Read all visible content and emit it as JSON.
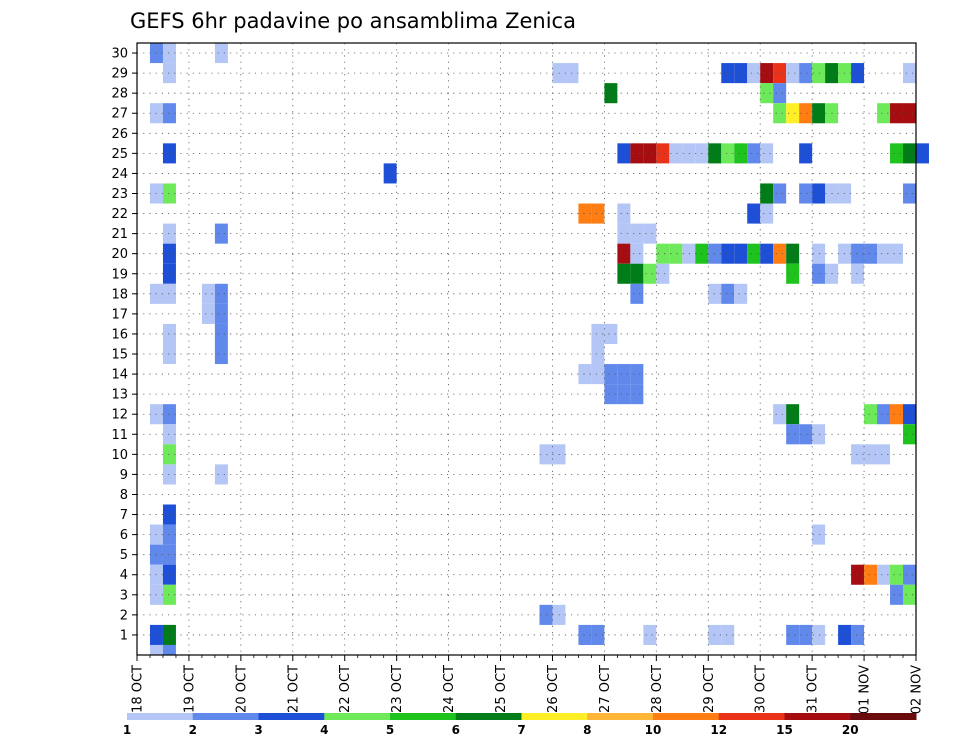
{
  "chart_data": {
    "type": "heatmap",
    "title": "GEFS 6hr padavine po ansamblima Zenica",
    "xlabel": "",
    "ylabel": "",
    "x_tick_labels": [
      "18 OCT",
      "19 OCT",
      "20 OCT",
      "21 OCT",
      "22 OCT",
      "23 OCT",
      "24 OCT",
      "25 OCT",
      "26 OCT",
      "27 OCT",
      "28 OCT",
      "29 OCT",
      "30 OCT",
      "31 OCT",
      "01 NOV",
      "02 NOV"
    ],
    "y_tick_labels": [
      "1",
      "2",
      "3",
      "4",
      "5",
      "6",
      "7",
      "8",
      "9",
      "10",
      "11",
      "12",
      "13",
      "14",
      "15",
      "16",
      "17",
      "18",
      "19",
      "20",
      "21",
      "22",
      "23",
      "24",
      "25",
      "26",
      "27",
      "28",
      "29",
      "30"
    ],
    "x_step_hours": 6,
    "y_range": [
      1,
      30
    ],
    "grid": "dotted",
    "colorbar": {
      "labels": [
        "1",
        "2",
        "3",
        "4",
        "5",
        "6",
        "7",
        "8",
        "10",
        "12",
        "15",
        "20"
      ],
      "colors": [
        "#b3c6f5",
        "#6189ec",
        "#1e4fd7",
        "#6ee95a",
        "#1fc31e",
        "#007d18",
        "#ffef27",
        "#ffb637",
        "#ff7d13",
        "#e93218",
        "#a50d10",
        "#6a0b0e"
      ]
    },
    "cells": [
      {
        "t": 1,
        "m": 30,
        "v": 2
      },
      {
        "t": 2,
        "m": 30,
        "v": 1
      },
      {
        "t": 6,
        "m": 30,
        "v": 1
      },
      {
        "t": 2,
        "m": 29,
        "v": 1
      },
      {
        "t": 1,
        "m": 27,
        "v": 1
      },
      {
        "t": 2,
        "m": 27,
        "v": 2
      },
      {
        "t": 2,
        "m": 25,
        "v": 3
      },
      {
        "t": 1,
        "m": 23,
        "v": 1
      },
      {
        "t": 2,
        "m": 23,
        "v": 4
      },
      {
        "t": 2,
        "m": 21,
        "v": 1
      },
      {
        "t": 6,
        "m": 21,
        "v": 2
      },
      {
        "t": 2,
        "m": 20,
        "v": 3
      },
      {
        "t": 2,
        "m": 19,
        "v": 3
      },
      {
        "t": 1,
        "m": 18,
        "v": 1
      },
      {
        "t": 2,
        "m": 18,
        "v": 1
      },
      {
        "t": 5,
        "m": 18,
        "v": 1
      },
      {
        "t": 6,
        "m": 18,
        "v": 2
      },
      {
        "t": 5,
        "m": 17,
        "v": 1
      },
      {
        "t": 6,
        "m": 17,
        "v": 2
      },
      {
        "t": 2,
        "m": 16,
        "v": 1
      },
      {
        "t": 6,
        "m": 16,
        "v": 2
      },
      {
        "t": 2,
        "m": 15,
        "v": 1
      },
      {
        "t": 6,
        "m": 15,
        "v": 2
      },
      {
        "t": 1,
        "m": 12,
        "v": 1
      },
      {
        "t": 2,
        "m": 12,
        "v": 2
      },
      {
        "t": 2,
        "m": 11,
        "v": 1
      },
      {
        "t": 2,
        "m": 10,
        "v": 4
      },
      {
        "t": 2,
        "m": 9,
        "v": 1
      },
      {
        "t": 6,
        "m": 9,
        "v": 1
      },
      {
        "t": 2,
        "m": 7,
        "v": 3
      },
      {
        "t": 1,
        "m": 6,
        "v": 1
      },
      {
        "t": 2,
        "m": 6,
        "v": 2
      },
      {
        "t": 1,
        "m": 5,
        "v": 2
      },
      {
        "t": 2,
        "m": 5,
        "v": 2
      },
      {
        "t": 1,
        "m": 4,
        "v": 1
      },
      {
        "t": 2,
        "m": 4,
        "v": 3
      },
      {
        "t": 1,
        "m": 3,
        "v": 1
      },
      {
        "t": 2,
        "m": 3,
        "v": 4
      },
      {
        "t": 1,
        "m": 1,
        "v": 3
      },
      {
        "t": 2,
        "m": 1,
        "v": 6
      },
      {
        "t": 1,
        "m": 0,
        "v": 1
      },
      {
        "t": 2,
        "m": 0,
        "v": 2
      },
      {
        "t": 19,
        "m": 24,
        "v": 3
      },
      {
        "t": 32,
        "m": 29,
        "v": 1
      },
      {
        "t": 33,
        "m": 29,
        "v": 1
      },
      {
        "t": 31,
        "m": 10,
        "v": 1
      },
      {
        "t": 32,
        "m": 10,
        "v": 1
      },
      {
        "t": 31,
        "m": 2,
        "v": 2
      },
      {
        "t": 32,
        "m": 2,
        "v": 1
      },
      {
        "t": 34,
        "m": 1,
        "v": 2
      },
      {
        "t": 35,
        "m": 1,
        "v": 2
      },
      {
        "t": 34,
        "m": 22,
        "v": 10
      },
      {
        "t": 35,
        "m": 22,
        "v": 10
      },
      {
        "t": 35,
        "m": 16,
        "v": 1
      },
      {
        "t": 35,
        "m": 15,
        "v": 1
      },
      {
        "t": 34,
        "m": 14,
        "v": 1
      },
      {
        "t": 35,
        "m": 14,
        "v": 1
      },
      {
        "t": 36,
        "m": 16,
        "v": 1
      },
      {
        "t": 36,
        "m": 28,
        "v": 6
      },
      {
        "t": 36,
        "m": 13,
        "v": 2
      },
      {
        "t": 37,
        "m": 13,
        "v": 2
      },
      {
        "t": 38,
        "m": 13,
        "v": 2
      },
      {
        "t": 36,
        "m": 14,
        "v": 2
      },
      {
        "t": 37,
        "m": 14,
        "v": 2
      },
      {
        "t": 38,
        "m": 14,
        "v": 2
      },
      {
        "t": 37,
        "m": 25,
        "v": 3
      },
      {
        "t": 38,
        "m": 25,
        "v": 15
      },
      {
        "t": 39,
        "m": 25,
        "v": 15
      },
      {
        "t": 40,
        "m": 25,
        "v": 12
      },
      {
        "t": 41,
        "m": 25,
        "v": 1
      },
      {
        "t": 42,
        "m": 25,
        "v": 1
      },
      {
        "t": 43,
        "m": 25,
        "v": 1
      },
      {
        "t": 44,
        "m": 25,
        "v": 6
      },
      {
        "t": 45,
        "m": 25,
        "v": 4
      },
      {
        "t": 46,
        "m": 25,
        "v": 5
      },
      {
        "t": 47,
        "m": 25,
        "v": 2
      },
      {
        "t": 48,
        "m": 25,
        "v": 1
      },
      {
        "t": 51,
        "m": 25,
        "v": 3
      },
      {
        "t": 58,
        "m": 25,
        "v": 5
      },
      {
        "t": 59,
        "m": 25,
        "v": 6
      },
      {
        "t": 60,
        "m": 25,
        "v": 3
      },
      {
        "t": 37,
        "m": 22,
        "v": 1
      },
      {
        "t": 37,
        "m": 21,
        "v": 1
      },
      {
        "t": 38,
        "m": 21,
        "v": 1
      },
      {
        "t": 39,
        "m": 21,
        "v": 1
      },
      {
        "t": 37,
        "m": 20,
        "v": 15
      },
      {
        "t": 38,
        "m": 20,
        "v": 1
      },
      {
        "t": 40,
        "m": 20,
        "v": 4
      },
      {
        "t": 41,
        "m": 20,
        "v": 4
      },
      {
        "t": 42,
        "m": 20,
        "v": 1
      },
      {
        "t": 43,
        "m": 20,
        "v": 5
      },
      {
        "t": 44,
        "m": 20,
        "v": 2
      },
      {
        "t": 45,
        "m": 20,
        "v": 3
      },
      {
        "t": 46,
        "m": 20,
        "v": 3
      },
      {
        "t": 47,
        "m": 20,
        "v": 5
      },
      {
        "t": 48,
        "m": 20,
        "v": 3
      },
      {
        "t": 49,
        "m": 20,
        "v": 10
      },
      {
        "t": 50,
        "m": 20,
        "v": 6
      },
      {
        "t": 52,
        "m": 20,
        "v": 1
      },
      {
        "t": 54,
        "m": 20,
        "v": 1
      },
      {
        "t": 55,
        "m": 20,
        "v": 2
      },
      {
        "t": 56,
        "m": 20,
        "v": 2
      },
      {
        "t": 57,
        "m": 20,
        "v": 1
      },
      {
        "t": 58,
        "m": 20,
        "v": 1
      },
      {
        "t": 37,
        "m": 19,
        "v": 6
      },
      {
        "t": 38,
        "m": 19,
        "v": 6
      },
      {
        "t": 39,
        "m": 19,
        "v": 4
      },
      {
        "t": 40,
        "m": 19,
        "v": 1
      },
      {
        "t": 50,
        "m": 19,
        "v": 5
      },
      {
        "t": 52,
        "m": 19,
        "v": 2
      },
      {
        "t": 53,
        "m": 19,
        "v": 1
      },
      {
        "t": 55,
        "m": 19,
        "v": 1
      },
      {
        "t": 38,
        "m": 18,
        "v": 2
      },
      {
        "t": 44,
        "m": 18,
        "v": 1
      },
      {
        "t": 45,
        "m": 18,
        "v": 2
      },
      {
        "t": 46,
        "m": 18,
        "v": 1
      },
      {
        "t": 44,
        "m": 1,
        "v": 1
      },
      {
        "t": 45,
        "m": 1,
        "v": 1
      },
      {
        "t": 50,
        "m": 1,
        "v": 2
      },
      {
        "t": 51,
        "m": 1,
        "v": 2
      },
      {
        "t": 52,
        "m": 1,
        "v": 1
      },
      {
        "t": 54,
        "m": 1,
        "v": 3
      },
      {
        "t": 55,
        "m": 1,
        "v": 2
      },
      {
        "t": 39,
        "m": 1,
        "v": 1
      },
      {
        "t": 45,
        "m": 29,
        "v": 3
      },
      {
        "t": 46,
        "m": 29,
        "v": 3
      },
      {
        "t": 47,
        "m": 29,
        "v": 1
      },
      {
        "t": 48,
        "m": 29,
        "v": 15
      },
      {
        "t": 49,
        "m": 29,
        "v": 12
      },
      {
        "t": 50,
        "m": 29,
        "v": 1
      },
      {
        "t": 51,
        "m": 29,
        "v": 2
      },
      {
        "t": 52,
        "m": 29,
        "v": 4
      },
      {
        "t": 53,
        "m": 29,
        "v": 6
      },
      {
        "t": 54,
        "m": 29,
        "v": 4
      },
      {
        "t": 55,
        "m": 29,
        "v": 3
      },
      {
        "t": 59,
        "m": 29,
        "v": 1
      },
      {
        "t": 48,
        "m": 28,
        "v": 4
      },
      {
        "t": 49,
        "m": 28,
        "v": 2
      },
      {
        "t": 49,
        "m": 27,
        "v": 4
      },
      {
        "t": 50,
        "m": 27,
        "v": 7
      },
      {
        "t": 51,
        "m": 27,
        "v": 10
      },
      {
        "t": 52,
        "m": 27,
        "v": 6
      },
      {
        "t": 53,
        "m": 27,
        "v": 4
      },
      {
        "t": 57,
        "m": 27,
        "v": 4
      },
      {
        "t": 58,
        "m": 27,
        "v": 15
      },
      {
        "t": 59,
        "m": 27,
        "v": 15
      },
      {
        "t": 47,
        "m": 22,
        "v": 3
      },
      {
        "t": 48,
        "m": 22,
        "v": 1
      },
      {
        "t": 48,
        "m": 23,
        "v": 6
      },
      {
        "t": 49,
        "m": 23,
        "v": 2
      },
      {
        "t": 51,
        "m": 23,
        "v": 2
      },
      {
        "t": 52,
        "m": 23,
        "v": 3
      },
      {
        "t": 53,
        "m": 23,
        "v": 1
      },
      {
        "t": 54,
        "m": 23,
        "v": 1
      },
      {
        "t": 59,
        "m": 23,
        "v": 2
      },
      {
        "t": 49,
        "m": 12,
        "v": 1
      },
      {
        "t": 50,
        "m": 12,
        "v": 6
      },
      {
        "t": 56,
        "m": 12,
        "v": 4
      },
      {
        "t": 57,
        "m": 12,
        "v": 2
      },
      {
        "t": 58,
        "m": 12,
        "v": 10
      },
      {
        "t": 59,
        "m": 12,
        "v": 3
      },
      {
        "t": 50,
        "m": 11,
        "v": 2
      },
      {
        "t": 51,
        "m": 11,
        "v": 2
      },
      {
        "t": 52,
        "m": 11,
        "v": 1
      },
      {
        "t": 59,
        "m": 11,
        "v": 5
      },
      {
        "t": 55,
        "m": 10,
        "v": 1
      },
      {
        "t": 56,
        "m": 10,
        "v": 1
      },
      {
        "t": 57,
        "m": 10,
        "v": 1
      },
      {
        "t": 52,
        "m": 6,
        "v": 1
      },
      {
        "t": 55,
        "m": 4,
        "v": 15
      },
      {
        "t": 56,
        "m": 4,
        "v": 10
      },
      {
        "t": 57,
        "m": 4,
        "v": 1
      },
      {
        "t": 58,
        "m": 4,
        "v": 4
      },
      {
        "t": 59,
        "m": 4,
        "v": 2
      },
      {
        "t": 58,
        "m": 3,
        "v": 2
      },
      {
        "t": 59,
        "m": 3,
        "v": 4
      }
    ]
  }
}
